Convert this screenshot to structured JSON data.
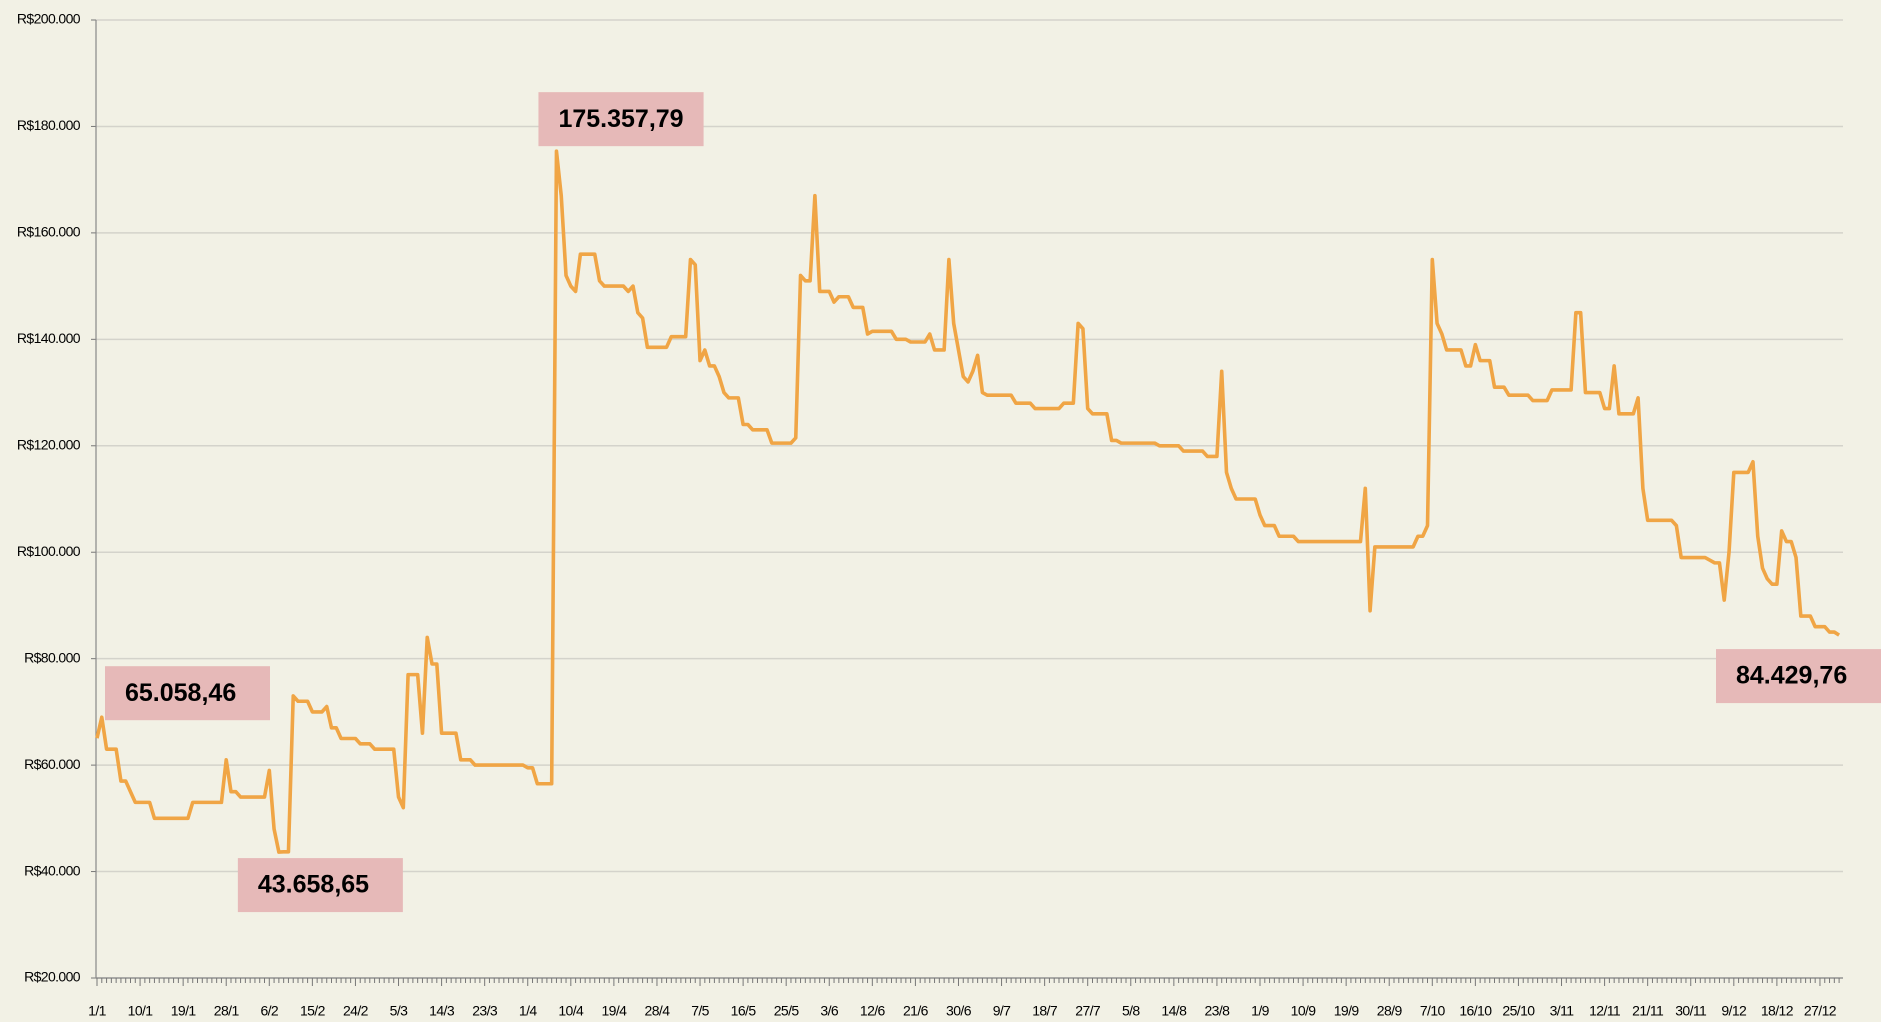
{
  "chart_data": {
    "type": "line",
    "color": "#f0a545",
    "grid": true,
    "ylim": [
      20000,
      200000
    ],
    "yticks": [
      {
        "value": 20000,
        "label": "R$20.000"
      },
      {
        "value": 40000,
        "label": "R$40.000"
      },
      {
        "value": 60000,
        "label": "R$60.000"
      },
      {
        "value": 80000,
        "label": "R$80.000"
      },
      {
        "value": 100000,
        "label": "R$100.000"
      },
      {
        "value": 120000,
        "label": "R$120.000"
      },
      {
        "value": 140000,
        "label": "R$140.000"
      },
      {
        "value": 160000,
        "label": "R$160.000"
      },
      {
        "value": 180000,
        "label": "R$180.000"
      },
      {
        "value": 200000,
        "label": "R$200.000"
      }
    ],
    "categories": [
      "1/1",
      null,
      null,
      null,
      null,
      null,
      null,
      null,
      null,
      "10/1",
      null,
      null,
      null,
      null,
      null,
      null,
      null,
      null,
      "19/1",
      null,
      null,
      null,
      null,
      null,
      null,
      null,
      null,
      "28/1",
      null,
      null,
      null,
      null,
      null,
      null,
      null,
      null,
      "6/2",
      null,
      null,
      null,
      null,
      null,
      null,
      null,
      null,
      "15/2",
      null,
      null,
      null,
      null,
      null,
      null,
      null,
      null,
      "24/2",
      null,
      null,
      null,
      null,
      null,
      null,
      null,
      null,
      "5/3",
      null,
      null,
      null,
      null,
      null,
      null,
      null,
      null,
      "14/3",
      null,
      null,
      null,
      null,
      null,
      null,
      null,
      null,
      "23/3",
      null,
      null,
      null,
      null,
      null,
      null,
      null,
      null,
      "1/4",
      null,
      null,
      null,
      null,
      null,
      null,
      null,
      null,
      "10/4",
      null,
      null,
      null,
      null,
      null,
      null,
      null,
      null,
      "19/4",
      null,
      null,
      null,
      null,
      null,
      null,
      null,
      null,
      "28/4",
      null,
      null,
      null,
      null,
      null,
      null,
      null,
      null,
      "7/5",
      null,
      null,
      null,
      null,
      null,
      null,
      null,
      null,
      "16/5",
      null,
      null,
      null,
      null,
      null,
      null,
      null,
      null,
      "25/5",
      null,
      null,
      null,
      null,
      null,
      null,
      null,
      null,
      "3/6",
      null,
      null,
      null,
      null,
      null,
      null,
      null,
      null,
      "12/6",
      null,
      null,
      null,
      null,
      null,
      null,
      null,
      null,
      "21/6",
      null,
      null,
      null,
      null,
      null,
      null,
      null,
      null,
      "30/6",
      null,
      null,
      null,
      null,
      null,
      null,
      null,
      null,
      "9/7",
      null,
      null,
      null,
      null,
      null,
      null,
      null,
      null,
      "18/7",
      null,
      null,
      null,
      null,
      null,
      null,
      null,
      null,
      "27/7",
      null,
      null,
      null,
      null,
      null,
      null,
      null,
      null,
      "5/8",
      null,
      null,
      null,
      null,
      null,
      null,
      null,
      null,
      "14/8",
      null,
      null,
      null,
      null,
      null,
      null,
      null,
      null,
      "23/8",
      null,
      null,
      null,
      null,
      null,
      null,
      null,
      null,
      "1/9",
      null,
      null,
      null,
      null,
      null,
      null,
      null,
      null,
      "10/9",
      null,
      null,
      null,
      null,
      null,
      null,
      null,
      null,
      "19/9",
      null,
      null,
      null,
      null,
      null,
      null,
      null,
      null,
      "28/9",
      null,
      null,
      null,
      null,
      null,
      null,
      null,
      null,
      "7/10",
      null,
      null,
      null,
      null,
      null,
      null,
      null,
      null,
      "16/10",
      null,
      null,
      null,
      null,
      null,
      null,
      null,
      null,
      "25/10",
      null,
      null,
      null,
      null,
      null,
      null,
      null,
      null,
      "3/11",
      null,
      null,
      null,
      null,
      null,
      null,
      null,
      null,
      "12/11",
      null,
      null,
      null,
      null,
      null,
      null,
      null,
      null,
      "21/11",
      null,
      null,
      null,
      null,
      null,
      null,
      null,
      null,
      "30/11",
      null,
      null,
      null,
      null,
      null,
      null,
      null,
      null,
      "9/12",
      null,
      null,
      null,
      null,
      null,
      null,
      null,
      null,
      "18/12",
      null,
      null,
      null,
      null,
      null,
      null,
      null,
      null,
      "27/12",
      null,
      null,
      null,
      null
    ],
    "values": [
      65058.46,
      69000,
      63000,
      63000,
      63000,
      57000,
      57000,
      55000,
      53000,
      53000,
      53000,
      53000,
      50000,
      50000,
      50000,
      50000,
      50000,
      50000,
      50000,
      50000,
      53000,
      53000,
      53000,
      53000,
      53000,
      53000,
      53000,
      61000,
      55000,
      55000,
      54000,
      54000,
      54000,
      54000,
      54000,
      54000,
      59000,
      48000,
      43658.65,
      43700,
      43700,
      73000,
      72000,
      72000,
      72000,
      70000,
      70000,
      70000,
      71000,
      67000,
      67000,
      65000,
      65000,
      65000,
      65000,
      64000,
      64000,
      64000,
      63000,
      63000,
      63000,
      63000,
      63000,
      54000,
      52000,
      77000,
      77000,
      77000,
      66000,
      84000,
      79000,
      79000,
      66000,
      66000,
      66000,
      66000,
      61000,
      61000,
      61000,
      60000,
      60000,
      60000,
      60000,
      60000,
      60000,
      60000,
      60000,
      60000,
      60000,
      60000,
      59500,
      59500,
      56500,
      56500,
      56500,
      56500,
      175357.79,
      167000,
      152000,
      150000,
      149000,
      156000,
      156000,
      156000,
      156000,
      151000,
      150000,
      150000,
      150000,
      150000,
      150000,
      149000,
      150000,
      145000,
      144000,
      138500,
      138500,
      138500,
      138500,
      138500,
      140500,
      140500,
      140500,
      140500,
      155000,
      154000,
      136000,
      138000,
      135000,
      135000,
      133000,
      130000,
      129000,
      129000,
      129000,
      124000,
      124000,
      123000,
      123000,
      123000,
      123000,
      120500,
      120500,
      120500,
      120500,
      120500,
      121500,
      152000,
      151000,
      151000,
      167000,
      149000,
      149000,
      149000,
      147000,
      148000,
      148000,
      148000,
      146000,
      146000,
      146000,
      141000,
      141500,
      141500,
      141500,
      141500,
      141500,
      140000,
      140000,
      140000,
      139500,
      139500,
      139500,
      139500,
      141000,
      138000,
      138000,
      138000,
      155000,
      143000,
      138000,
      133000,
      132000,
      134000,
      137000,
      130000,
      129500,
      129500,
      129500,
      129500,
      129500,
      129500,
      128000,
      128000,
      128000,
      128000,
      127000,
      127000,
      127000,
      127000,
      127000,
      127000,
      128000,
      128000,
      128000,
      143000,
      142000,
      127000,
      126000,
      126000,
      126000,
      126000,
      121000,
      121000,
      120500,
      120500,
      120500,
      120500,
      120500,
      120500,
      120500,
      120500,
      120000,
      120000,
      120000,
      120000,
      120000,
      119000,
      119000,
      119000,
      119000,
      119000,
      118000,
      118000,
      118000,
      134000,
      115000,
      112000,
      110000,
      110000,
      110000,
      110000,
      110000,
      107000,
      105000,
      105000,
      105000,
      103000,
      103000,
      103000,
      103000,
      102000,
      102000,
      102000,
      102000,
      102000,
      102000,
      102000,
      102000,
      102000,
      102000,
      102000,
      102000,
      102000,
      102000,
      112000,
      89000,
      101000,
      101000,
      101000,
      101000,
      101000,
      101000,
      101000,
      101000,
      101000,
      103000,
      103000,
      105000,
      155000,
      143000,
      141000,
      138000,
      138000,
      138000,
      138000,
      135000,
      135000,
      139000,
      136000,
      136000,
      136000,
      131000,
      131000,
      131000,
      129500,
      129500,
      129500,
      129500,
      129500,
      128500,
      128500,
      128500,
      128500,
      130500,
      130500,
      130500,
      130500,
      130500,
      145000,
      145000,
      130000,
      130000,
      130000,
      130000,
      127000,
      127000,
      135000,
      126000,
      126000,
      126000,
      126000,
      129000,
      112000,
      106000,
      106000,
      106000,
      106000,
      106000,
      106000,
      105000,
      99000,
      99000,
      99000,
      99000,
      99000,
      99000,
      98500,
      98000,
      98000,
      91000,
      100000,
      115000,
      115000,
      115000,
      115000,
      117000,
      103000,
      97000,
      95000,
      94000,
      94000,
      104000,
      102000,
      102000,
      99000,
      88000,
      88000,
      88000,
      86000,
      86000,
      86000,
      85000,
      85000,
      84429.76
    ],
    "value_labels": [
      "65.058,46",
      null,
      null,
      null,
      null,
      null,
      null,
      null,
      null,
      null,
      null,
      null,
      null,
      null,
      null,
      null,
      null,
      null,
      null,
      null,
      null,
      null,
      null,
      null,
      null,
      null,
      null,
      null,
      null,
      null,
      null,
      null,
      null,
      null,
      null,
      null,
      null,
      null,
      "43.658,65",
      null,
      null,
      null,
      null,
      null,
      null,
      null,
      null,
      null,
      null,
      null,
      null,
      null,
      null,
      null,
      null,
      null,
      null,
      null,
      null,
      null,
      null,
      null,
      null,
      null,
      null,
      null,
      null,
      null,
      null,
      null,
      null,
      null,
      null,
      null,
      null,
      null,
      null,
      null,
      null,
      null,
      null,
      null,
      null,
      null,
      null,
      null,
      null,
      null,
      null,
      null,
      null,
      null,
      null,
      null,
      null,
      null,
      "175.357,79",
      null,
      null,
      null,
      null,
      null,
      null,
      null,
      null,
      null,
      null,
      null,
      null,
      null,
      null,
      null,
      null,
      null,
      null,
      null,
      null,
      null,
      null,
      null,
      null,
      null,
      null,
      null,
      null,
      null,
      null,
      null,
      null,
      null,
      null,
      null,
      null,
      null,
      null,
      null,
      null,
      null,
      null,
      null,
      null,
      null,
      null,
      null,
      null,
      null,
      null,
      null,
      null,
      null,
      null,
      null,
      null,
      null,
      null,
      null,
      null,
      null,
      null,
      null,
      null,
      null,
      null,
      null,
      null,
      null,
      null,
      null,
      null,
      null,
      null,
      null,
      null,
      null,
      null,
      null,
      null,
      null,
      null,
      null,
      null,
      null,
      null,
      null,
      null,
      null,
      null,
      null,
      null,
      null,
      null,
      null,
      null,
      null,
      null,
      null,
      null,
      null,
      null,
      null,
      null,
      null,
      null,
      null,
      null,
      null,
      null,
      null,
      null,
      null,
      null,
      null,
      null,
      null,
      null,
      null,
      null,
      null,
      null,
      null,
      null,
      null,
      null,
      null,
      null,
      null,
      null,
      null,
      null,
      null,
      null,
      null,
      null,
      null,
      null,
      null,
      null,
      null,
      null,
      null,
      null,
      null,
      null,
      null,
      null,
      null,
      null,
      null,
      null,
      null,
      null,
      null,
      null,
      null,
      null,
      null,
      null,
      null,
      null,
      null,
      null,
      null,
      null,
      null,
      null,
      null,
      null,
      null,
      null,
      null,
      null,
      null,
      null,
      null,
      null,
      null,
      null,
      null,
      null,
      null,
      null,
      null,
      null,
      null,
      null,
      null,
      null,
      null,
      null,
      null,
      null,
      null,
      null,
      null,
      null,
      null,
      null,
      null,
      null,
      null,
      null,
      null,
      null,
      null,
      null,
      null,
      null,
      null,
      null,
      null,
      null,
      null,
      null,
      null,
      null,
      null,
      null,
      null,
      null,
      null,
      null,
      null,
      null,
      null,
      null,
      null,
      null,
      null,
      null,
      null,
      null,
      null,
      null,
      null,
      null,
      null,
      null,
      null,
      null,
      null,
      null,
      null,
      null,
      null,
      null,
      null,
      null,
      null,
      null,
      null,
      null,
      null,
      null,
      null,
      null,
      null,
      null,
      null,
      null,
      null,
      null,
      null,
      null,
      null,
      "84.429,76"
    ]
  }
}
